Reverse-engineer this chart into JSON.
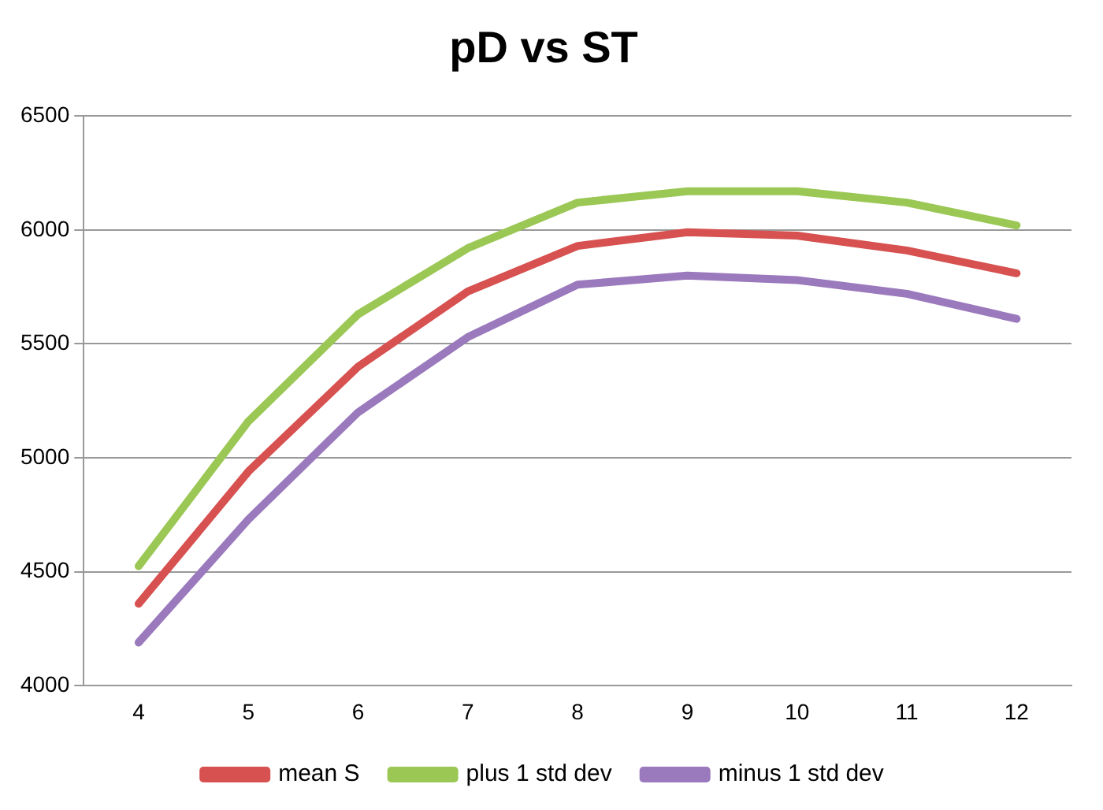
{
  "chart_data": {
    "type": "line",
    "title": "pD vs ST",
    "categories": [
      "4",
      "5",
      "6",
      "7",
      "8",
      "9",
      "10",
      "11",
      "12"
    ],
    "series": [
      {
        "name": "mean S",
        "color": "#d65150",
        "values": [
          4360,
          4940,
          5400,
          5730,
          5930,
          5990,
          5975,
          5910,
          5810
        ]
      },
      {
        "name": "plus 1 std dev",
        "color": "#9bc755",
        "values": [
          4525,
          5160,
          5630,
          5920,
          6120,
          6170,
          6170,
          6120,
          6020
        ]
      },
      {
        "name": "minus 1 std dev",
        "color": "#9a79bd",
        "values": [
          4190,
          4730,
          5200,
          5530,
          5760,
          5800,
          5780,
          5720,
          5610
        ]
      }
    ],
    "ylim": [
      4000,
      6500
    ],
    "yticks": [
      4000,
      4500,
      5000,
      5500,
      6000,
      6500
    ],
    "grid": "y",
    "legend": "bottom",
    "marker": "none",
    "line_style": "solid"
  }
}
